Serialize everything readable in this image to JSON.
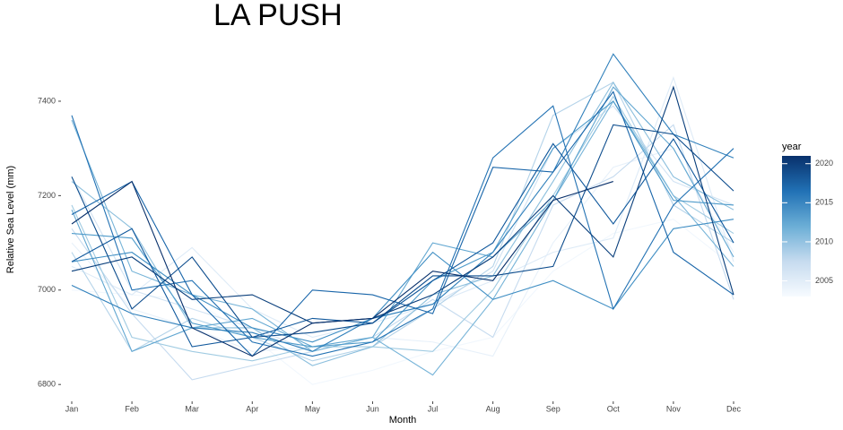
{
  "chart_data": {
    "type": "line",
    "title": "LA PUSH",
    "x_label": "Month",
    "y_label": "Relative Sea Level (mm)",
    "categories": [
      "Jan",
      "Feb",
      "Mar",
      "Apr",
      "May",
      "Jun",
      "Jul",
      "Aug",
      "Sep",
      "Oct",
      "Nov",
      "Dec"
    ],
    "ylim": [
      6770,
      7510
    ],
    "yticks": [
      6800,
      7000,
      7200,
      7400
    ],
    "grid": false,
    "legend": {
      "title": "year",
      "lim": [
        2003,
        2021
      ],
      "ticks": [
        2005,
        2010,
        2015,
        2020
      ],
      "colors": [
        "#f7fbff",
        "#c6dbef",
        "#6baed6",
        "#2171b5",
        "#08306b"
      ]
    },
    "series": [
      {
        "name": "2003",
        "color": "#f1f7fd",
        "values": [
          7000,
          6990,
          6980,
          6900,
          6800,
          6830,
          6870,
          6900,
          7040,
          7120,
          7150,
          7050
        ]
      },
      {
        "name": "2004",
        "color": "#e8f1fa",
        "values": [
          7100,
          6960,
          6920,
          6870,
          6880,
          6900,
          6890,
          6860,
          7100,
          7260,
          7300,
          7080
        ]
      },
      {
        "name": "2005",
        "color": "#deebf7",
        "values": [
          7050,
          6990,
          7090,
          6960,
          6900,
          6930,
          6970,
          7020,
          7080,
          7110,
          7450,
          7060
        ]
      },
      {
        "name": "2006",
        "color": "#d2e3f3",
        "values": [
          7240,
          7000,
          6960,
          6920,
          6870,
          6940,
          6970,
          7040,
          7300,
          7390,
          7230,
          7180
        ]
      },
      {
        "name": "2007",
        "color": "#c6dbef",
        "values": [
          7130,
          6950,
          6810,
          6840,
          6870,
          6900,
          6980,
          6900,
          7180,
          7240,
          7350,
          6980
        ]
      },
      {
        "name": "2008",
        "color": "#b4d3e9",
        "values": [
          7080,
          6870,
          6940,
          6900,
          6850,
          6880,
          6960,
          7050,
          7370,
          7440,
          7180,
          7100
        ]
      },
      {
        "name": "2009",
        "color": "#a0cbe2",
        "values": [
          7180,
          6900,
          6870,
          6850,
          6880,
          6880,
          6870,
          7000,
          7200,
          7410,
          7200,
          7120
        ]
      },
      {
        "name": "2010",
        "color": "#8cbfdd",
        "values": [
          7230,
          7130,
          6920,
          6920,
          6840,
          6880,
          6990,
          7030,
          7230,
          7440,
          7240,
          7170
        ]
      },
      {
        "name": "2011",
        "color": "#77b4d8",
        "values": [
          7360,
          7040,
          6990,
          6960,
          6870,
          6900,
          6820,
          6980,
          7190,
          7400,
          7200,
          7050
        ]
      },
      {
        "name": "2012",
        "color": "#62a7d1",
        "values": [
          7170,
          6870,
          6920,
          6940,
          6880,
          6900,
          7100,
          7070,
          7190,
          7430,
          7300,
          7070
        ]
      },
      {
        "name": "2013",
        "color": "#4f9bca",
        "values": [
          7120,
          7110,
          6930,
          6900,
          6880,
          6890,
          7020,
          7080,
          7300,
          7400,
          7190,
          7180
        ]
      },
      {
        "name": "2014",
        "color": "#3f8ec3",
        "values": [
          7060,
          7080,
          6990,
          6920,
          6890,
          6940,
          7080,
          6980,
          7020,
          6960,
          7130,
          7150
        ]
      },
      {
        "name": "2015",
        "color": "#3080bb",
        "values": [
          7010,
          6950,
          6920,
          6910,
          6870,
          6940,
          6970,
          7080,
          7250,
          7500,
          7330,
          7280
        ]
      },
      {
        "name": "2016",
        "color": "#2372b3",
        "values": [
          7370,
          7000,
          7020,
          6890,
          6860,
          6890,
          6960,
          7280,
          7390,
          6960,
          7180,
          7300
        ]
      },
      {
        "name": "2017",
        "color": "#1865a9",
        "values": [
          7160,
          7230,
          6990,
          6860,
          7000,
          6990,
          6950,
          7260,
          7250,
          7420,
          7080,
          6990
        ]
      },
      {
        "name": "2018",
        "color": "#10589c",
        "values": [
          7060,
          7130,
          6880,
          6900,
          6940,
          6930,
          7020,
          7100,
          7310,
          7140,
          7320,
          7100
        ]
      },
      {
        "name": "2019",
        "color": "#0b4b8c",
        "values": [
          7240,
          6960,
          7070,
          6900,
          6910,
          6930,
          7030,
          7030,
          7050,
          7350,
          7330,
          7210
        ]
      },
      {
        "name": "2020",
        "color": "#093e7b",
        "values": [
          7040,
          7070,
          6980,
          6990,
          6930,
          6940,
          6990,
          7070,
          7200,
          7070,
          7430,
          6990
        ]
      },
      {
        "name": "2021",
        "color": "#08306b",
        "values": [
          7140,
          7230,
          6920,
          6860,
          6930,
          6940,
          7040,
          7020,
          7190,
          7230,
          null,
          null
        ]
      }
    ]
  }
}
